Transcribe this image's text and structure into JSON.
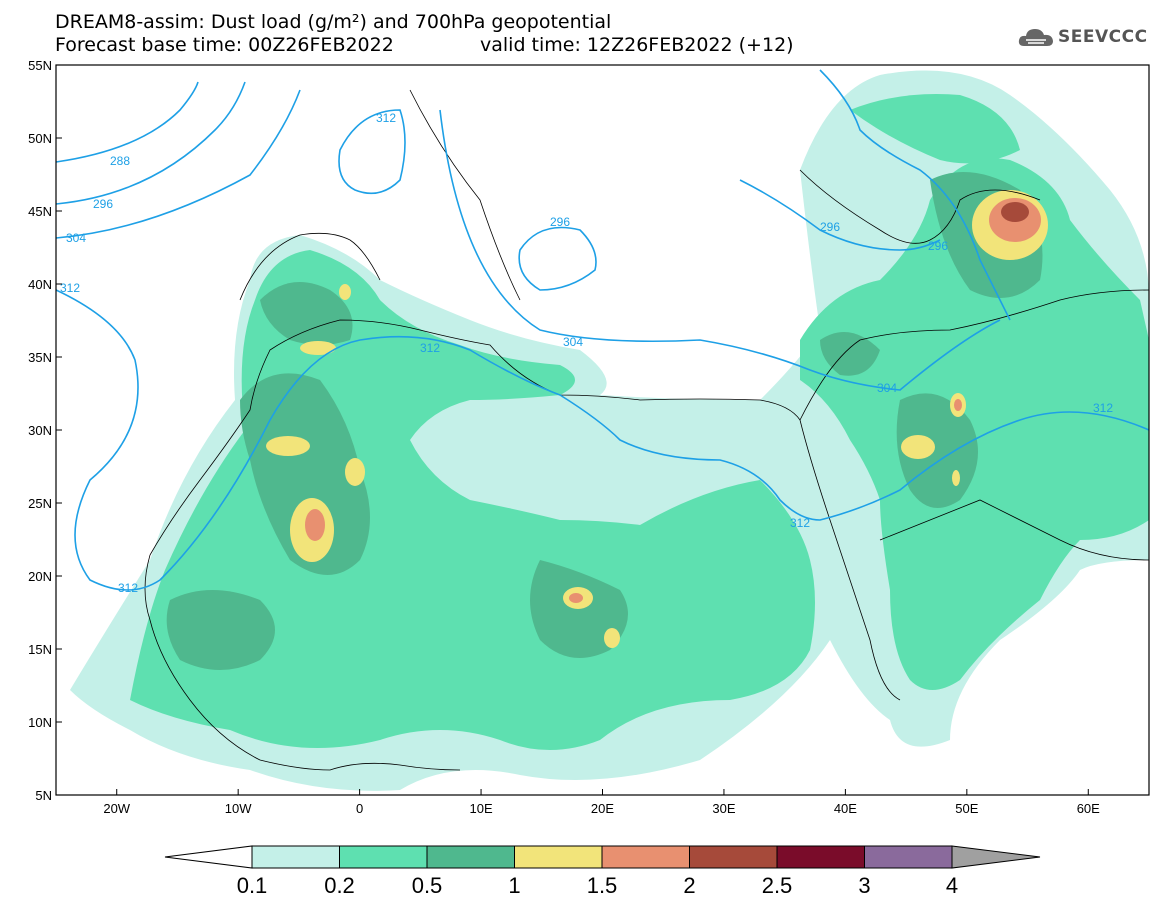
{
  "header": {
    "title_line1": "DREAM8-assim: Dust load (g/m²) and 700hPa geopotential",
    "title_line2": "Forecast base time: 00Z26FEB2022",
    "valid_time": "valid time: 12Z26FEB2022 (+12)",
    "logo_text": "SEEVCCC",
    "logo_icon": "cloud-logo-icon"
  },
  "map": {
    "lat_labels": [
      "55N",
      "50N",
      "45N",
      "40N",
      "35N",
      "30N",
      "25N",
      "20N",
      "15N",
      "10N",
      "5N"
    ],
    "lon_labels": [
      "20W",
      "10W",
      "0",
      "10E",
      "20E",
      "30E",
      "40E",
      "50E",
      "60E"
    ],
    "lat_range": [
      5,
      55
    ],
    "lon_range": [
      -25,
      65
    ],
    "contour_color": "#1ea0e6",
    "contour_labels": [
      "288",
      "296",
      "304",
      "312",
      "312",
      "312",
      "296",
      "312",
      "304",
      "312",
      "296",
      "296",
      "304",
      "312"
    ]
  },
  "colorbar": {
    "levels": [
      "0.1",
      "0.2",
      "0.5",
      "1",
      "1.5",
      "2",
      "2.5",
      "3",
      "4"
    ],
    "colors": [
      "#c4f0e8",
      "#5ee0b0",
      "#4fb88e",
      "#f2e47a",
      "#e89070",
      "#a64a3a",
      "#7a0c2a",
      "#8a6a9c",
      "#a0a0a0"
    ],
    "under_color": "#ffffff",
    "over_color": "#a0a0a0"
  }
}
